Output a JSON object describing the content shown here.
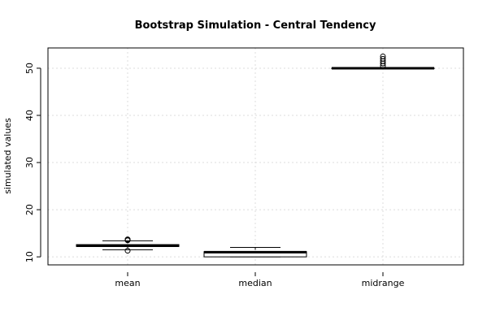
{
  "chart_data": {
    "type": "box",
    "title": "Bootstrap Simulation - Central Tendency",
    "xlabel": "",
    "ylabel": "simulated values",
    "ylim": [
      8.3,
      54.3
    ],
    "yticks": [
      10,
      20,
      30,
      40,
      50
    ],
    "grid": true,
    "categories": [
      "mean",
      "median",
      "midrange"
    ],
    "boxes": [
      {
        "category": "mean",
        "whisker_low": 11.5,
        "q1": 12.2,
        "median": 12.35,
        "q3": 12.6,
        "whisker_high": 13.4,
        "outliers": [
          11.3,
          13.6,
          13.7,
          13.5
        ]
      },
      {
        "category": "median",
        "whisker_low": 10.0,
        "q1": 10.0,
        "median": 11.0,
        "q3": 11.1,
        "whisker_high": 12.0,
        "outliers": []
      },
      {
        "category": "midrange",
        "whisker_low": 50.0,
        "q1": 50.0,
        "median": 50.0,
        "q3": 50.0,
        "whisker_high": 50.0,
        "outliers": [
          50.5,
          51.0,
          51.5,
          52.0,
          52.5
        ]
      }
    ]
  }
}
